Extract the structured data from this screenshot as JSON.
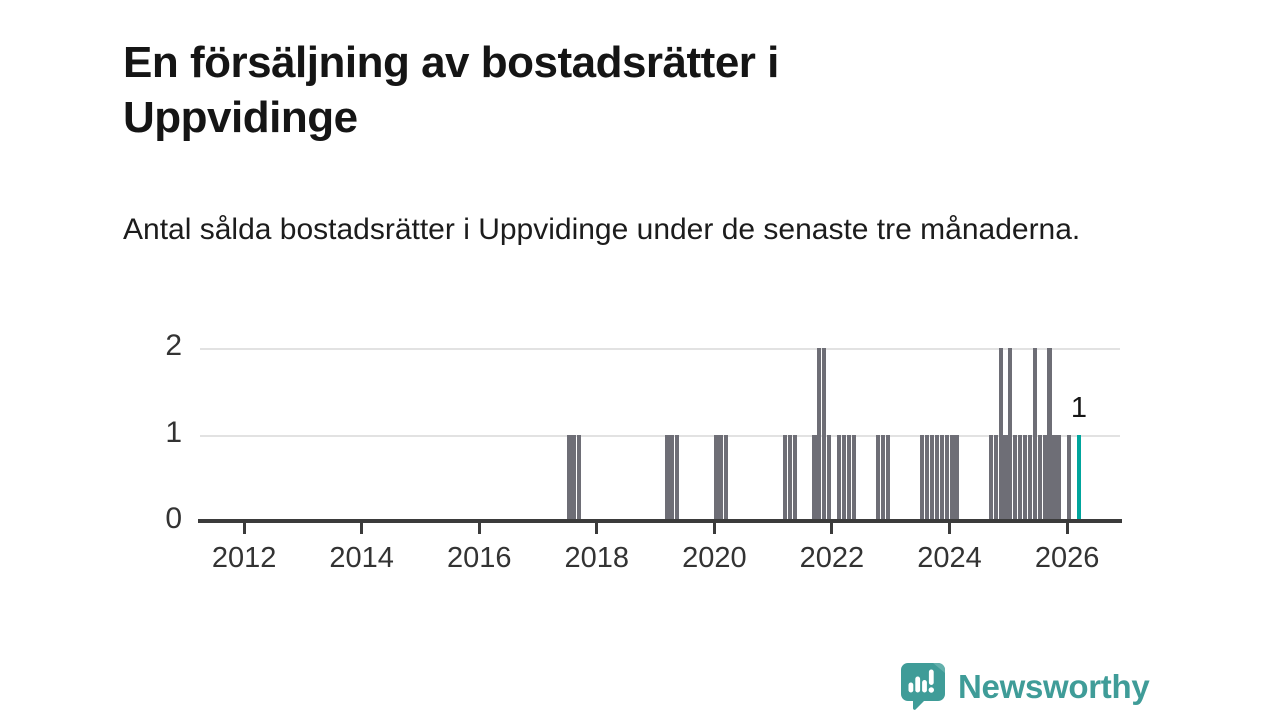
{
  "header": {
    "title": "En försäljning av bostadsrätter i Uppvidinge",
    "subtitle": "Antal sålda bostadsrätter i Uppvidinge under de senaste tre månaderna."
  },
  "branding": {
    "logo_text": "Newsworthy",
    "logo_icon": "speech-bubble-bar-chart-icon",
    "logo_color": "#3f9c98"
  },
  "chart_data": {
    "type": "bar",
    "title": "En försäljning av bostadsrätter i Uppvidinge",
    "subtitle": "Antal sålda bostadsrätter i Uppvidinge under de senaste tre månaderna.",
    "x_axis": {
      "tick_years": [
        2012,
        2014,
        2016,
        2018,
        2020,
        2022,
        2024,
        2026
      ],
      "range_years": [
        2011.25,
        2026.9
      ]
    },
    "y_axis": {
      "ticks": [
        0,
        1,
        2
      ],
      "gridline_values": [
        1,
        2
      ],
      "range": [
        0,
        2
      ]
    },
    "grid": "horizontal",
    "legend": "none",
    "bar_color": "#6e6e76",
    "highlight_color": "#00a59d",
    "annotation": {
      "text": "1",
      "month": "2026-03",
      "value": 1
    },
    "bars": [
      {
        "month": "2017-07",
        "value": 1
      },
      {
        "month": "2017-08",
        "value": 1
      },
      {
        "month": "2017-09",
        "value": 1
      },
      {
        "month": "2019-03",
        "value": 1
      },
      {
        "month": "2019-04",
        "value": 1
      },
      {
        "month": "2019-05",
        "value": 1
      },
      {
        "month": "2020-01",
        "value": 1
      },
      {
        "month": "2020-02",
        "value": 1
      },
      {
        "month": "2020-03",
        "value": 1
      },
      {
        "month": "2021-03",
        "value": 1
      },
      {
        "month": "2021-04",
        "value": 1
      },
      {
        "month": "2021-05",
        "value": 1
      },
      {
        "month": "2021-09",
        "value": 1
      },
      {
        "month": "2021-10",
        "value": 2
      },
      {
        "month": "2021-11",
        "value": 2
      },
      {
        "month": "2021-12",
        "value": 1
      },
      {
        "month": "2022-02",
        "value": 1
      },
      {
        "month": "2022-03",
        "value": 1
      },
      {
        "month": "2022-04",
        "value": 1
      },
      {
        "month": "2022-05",
        "value": 1
      },
      {
        "month": "2022-10",
        "value": 1
      },
      {
        "month": "2022-11",
        "value": 1
      },
      {
        "month": "2022-12",
        "value": 1
      },
      {
        "month": "2023-07",
        "value": 1
      },
      {
        "month": "2023-08",
        "value": 1
      },
      {
        "month": "2023-09",
        "value": 1
      },
      {
        "month": "2023-10",
        "value": 1
      },
      {
        "month": "2023-11",
        "value": 1
      },
      {
        "month": "2023-12",
        "value": 1
      },
      {
        "month": "2024-01",
        "value": 1
      },
      {
        "month": "2024-02",
        "value": 1
      },
      {
        "month": "2024-09",
        "value": 1
      },
      {
        "month": "2024-10",
        "value": 1
      },
      {
        "month": "2024-11",
        "value": 2
      },
      {
        "month": "2024-12",
        "value": 1
      },
      {
        "month": "2025-01",
        "value": 2
      },
      {
        "month": "2025-02",
        "value": 1
      },
      {
        "month": "2025-03",
        "value": 1
      },
      {
        "month": "2025-04",
        "value": 1
      },
      {
        "month": "2025-05",
        "value": 1
      },
      {
        "month": "2025-06",
        "value": 2
      },
      {
        "month": "2025-07",
        "value": 1
      },
      {
        "month": "2025-08",
        "value": 1
      },
      {
        "month": "2025-09",
        "value": 2
      },
      {
        "month": "2025-10",
        "value": 1
      },
      {
        "month": "2025-11",
        "value": 1
      },
      {
        "month": "2026-01",
        "value": 1
      },
      {
        "month": "2026-03",
        "value": 1,
        "highlight": true
      }
    ]
  }
}
